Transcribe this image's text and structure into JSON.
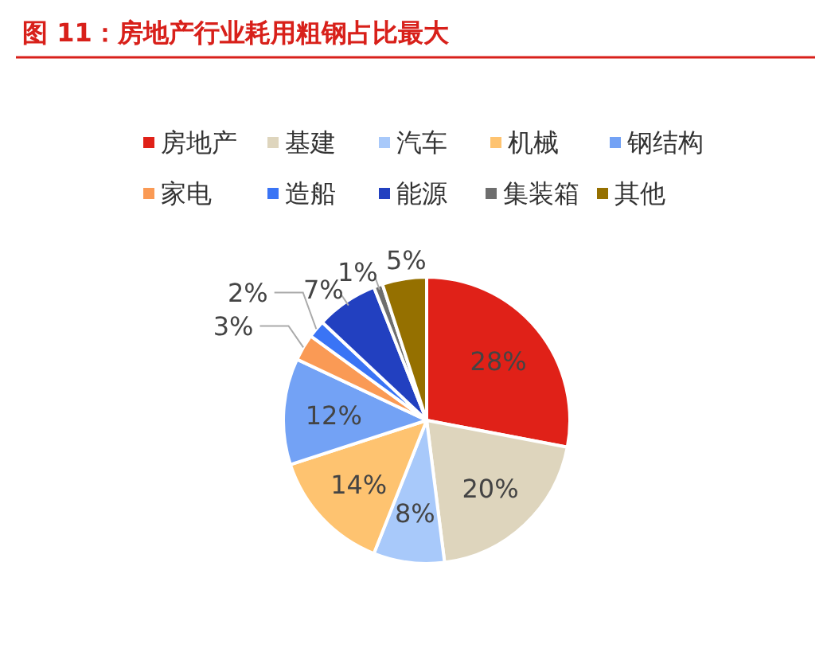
{
  "chart_data": {
    "type": "pie",
    "title": "图 11：房地产行业耗用粗钢占比最大",
    "categories": [
      "房地产",
      "基建",
      "汽车",
      "机械",
      "钢结构",
      "家电",
      "造船",
      "能源",
      "集装箱",
      "其他"
    ],
    "values": [
      28,
      20,
      8,
      14,
      12,
      3,
      2,
      7,
      1,
      5
    ],
    "colors": [
      "#e02118",
      "#ded5bd",
      "#a8c9fa",
      "#fec370",
      "#73a2f5",
      "#fa9a55",
      "#3a74f5",
      "#2240c0",
      "#6e6e6e",
      "#957000"
    ],
    "value_labels": [
      "28%",
      "20%",
      "8%",
      "14%",
      "12%",
      "3%",
      "2%",
      "7%",
      "1%",
      "5%"
    ],
    "legend": "top"
  }
}
